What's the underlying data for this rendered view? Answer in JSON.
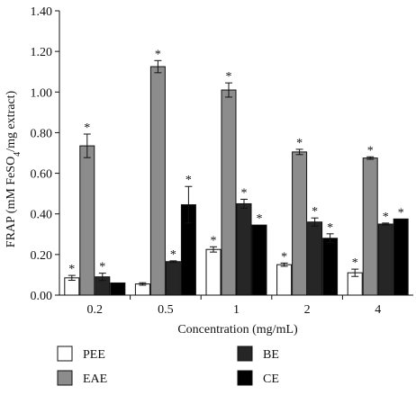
{
  "chart_data": {
    "type": "bar",
    "title": "",
    "xlabel": "Concentration (mg/mL)",
    "ylabel_parts": {
      "prefix": "FRAP (mM FeSO",
      "subscript": "4",
      "suffix": "/mg extract)"
    },
    "categories": [
      "0.2",
      "0.5",
      "1",
      "2",
      "4"
    ],
    "ylim": [
      0,
      1.4
    ],
    "yticks": [
      "0.00",
      "0.20",
      "0.40",
      "0.60",
      "0.80",
      "1.00",
      "1.20",
      "1.40"
    ],
    "significance_marker": "*",
    "legend_placement": "bottom",
    "series": [
      {
        "name": "PEE",
        "color": "#ffffff",
        "values": [
          0.085,
          0.055,
          0.225,
          0.15,
          0.11
        ],
        "errors": [
          0.012,
          0.006,
          0.013,
          0.008,
          0.018
        ],
        "significant": [
          true,
          false,
          true,
          true,
          true
        ]
      },
      {
        "name": "EAE",
        "color": "#8c8c8c",
        "values": [
          0.735,
          1.125,
          1.01,
          0.705,
          0.675
        ],
        "errors": [
          0.058,
          0.03,
          0.035,
          0.013,
          0.006
        ],
        "significant": [
          true,
          true,
          true,
          true,
          true
        ]
      },
      {
        "name": "BE",
        "color": "#262626",
        "values": [
          0.09,
          0.165,
          0.45,
          0.36,
          0.35
        ],
        "errors": [
          0.018,
          0.004,
          0.022,
          0.02,
          0.005
        ],
        "significant": [
          true,
          true,
          true,
          true,
          true
        ]
      },
      {
        "name": "CE",
        "color": "#000000",
        "values": [
          0.06,
          0.445,
          0.345,
          0.28,
          0.375
        ],
        "errors": [
          0,
          0.09,
          0,
          0.022,
          0
        ],
        "significant": [
          false,
          true,
          true,
          true,
          true
        ]
      }
    ]
  }
}
